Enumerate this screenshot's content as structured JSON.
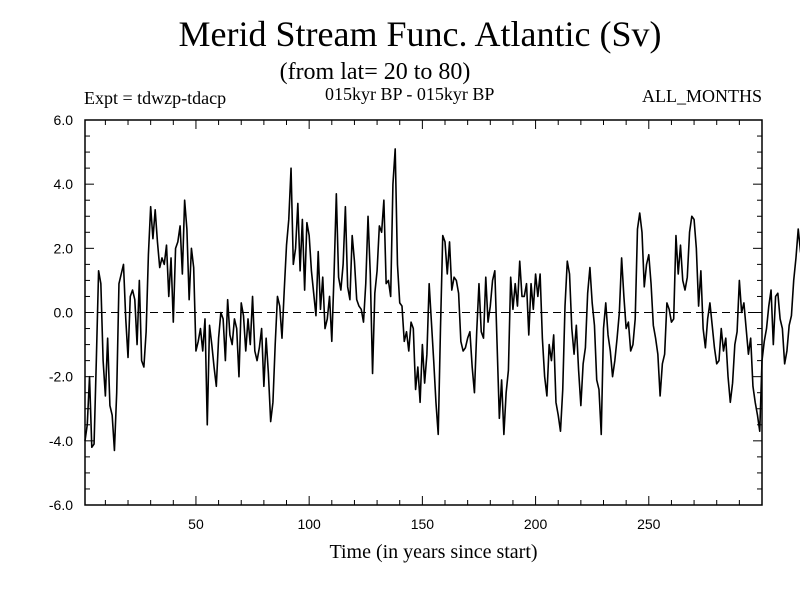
{
  "header": {
    "title": "Merid Stream Func. Atlantic (Sv)",
    "subtitle": "(from lat= 20 to 80)",
    "expt": "Expt = tdwzp-tdacp",
    "period": "015kyr BP - 015kyr BP",
    "months": "ALL_MONTHS"
  },
  "colors": {
    "line": "#000000",
    "axis": "#000000",
    "background": "#ffffff"
  },
  "chart_data": {
    "type": "line",
    "title": "Merid Stream Func. Atlantic (Sv)",
    "subtitle": "(from lat= 20 to 80)",
    "xlabel": "Time (in years since start)",
    "ylabel": "",
    "xlim": [
      1,
      300
    ],
    "ylim": [
      -6,
      6
    ],
    "x_ticks": [
      50,
      100,
      150,
      200,
      250
    ],
    "x_tick_labels": [
      "50",
      "100",
      "150",
      "200",
      "250"
    ],
    "y_ticks": [
      -6,
      -4,
      -2,
      0,
      2,
      4,
      6
    ],
    "y_tick_labels": [
      "-6.0",
      "-4.0",
      "-2.0",
      "0.0",
      "2.0",
      "4.0",
      "6.0"
    ],
    "reference_line": {
      "y": 0,
      "style": "dashed"
    },
    "grid": false,
    "series": [
      {
        "name": "tdwzp-tdacp",
        "x_start": 1,
        "x_step": 1,
        "values": [
          -4.0,
          -3.5,
          -2.0,
          -4.2,
          -4.1,
          -1.5,
          1.3,
          0.9,
          -1.5,
          -2.6,
          -0.8,
          -2.9,
          -3.2,
          -4.3,
          -2.5,
          0.9,
          1.2,
          1.5,
          -0.2,
          -1.4,
          0.5,
          0.7,
          0.4,
          -1.0,
          1.0,
          -1.5,
          -1.7,
          -0.6,
          1.8,
          3.3,
          2.3,
          3.2,
          2.2,
          1.4,
          1.7,
          1.5,
          2.1,
          0.5,
          1.7,
          -0.3,
          2.0,
          2.2,
          2.7,
          1.2,
          3.5,
          2.6,
          0.4,
          2.0,
          1.4,
          -1.2,
          -0.9,
          -0.5,
          -1.2,
          -0.2,
          -3.5,
          -0.4,
          -1.0,
          -1.7,
          -2.3,
          -0.8,
          0.0,
          -0.2,
          -1.5,
          0.4,
          -0.7,
          -1.0,
          -0.2,
          -0.5,
          -2.0,
          0.3,
          -0.1,
          -1.2,
          -0.2,
          -1.0,
          0.5,
          -1.2,
          -1.5,
          -1.1,
          -0.5,
          -2.3,
          -0.8,
          -1.9,
          -3.4,
          -2.8,
          -1.0,
          0.5,
          0.2,
          -0.8,
          0.7,
          2.1,
          2.9,
          4.5,
          1.5,
          2.0,
          3.4,
          1.3,
          2.9,
          0.7,
          2.8,
          2.4,
          1.3,
          0.6,
          -0.1,
          1.9,
          0.1,
          1.1,
          -0.5,
          -0.2,
          0.5,
          -0.9,
          1.2,
          3.7,
          1.1,
          0.7,
          1.5,
          3.3,
          0.8,
          0.4,
          2.4,
          1.6,
          0.4,
          0.2,
          0.1,
          -0.3,
          0.9,
          3.0,
          1.2,
          -1.9,
          0.6,
          1.3,
          2.7,
          2.5,
          3.5,
          0.9,
          1.0,
          0.5,
          4.0,
          5.1,
          1.5,
          0.3,
          0.2,
          -0.9,
          -0.6,
          -1.2,
          -0.3,
          -0.5,
          -2.4,
          -1.7,
          -2.8,
          -1.0,
          -2.2,
          -1.3,
          0.9,
          -0.3,
          -1.5,
          -2.8,
          -3.8,
          -0.5,
          2.4,
          2.2,
          1.2,
          2.2,
          0.7,
          1.1,
          1.0,
          0.6,
          -0.9,
          -1.2,
          -1.1,
          -0.8,
          -0.6,
          -1.7,
          -2.5,
          -0.6,
          0.9,
          -0.6,
          -0.8,
          1.1,
          -0.3,
          0.2,
          1.0,
          1.3,
          -1.0,
          -3.3,
          -2.1,
          -3.8,
          -2.5,
          -1.8,
          1.1,
          0.1,
          0.9,
          0.2,
          1.6,
          0.5,
          0.5,
          0.9,
          -0.7,
          0.9,
          0.1,
          1.2,
          0.5,
          1.2,
          -0.8,
          -2.0,
          -2.6,
          -1.0,
          -1.5,
          -0.7,
          -2.8,
          -3.2,
          -3.7,
          -2.4,
          0.2,
          1.6,
          1.2,
          -0.5,
          -1.3,
          -0.4,
          -1.8,
          -2.9,
          -1.6,
          -1.1,
          0.6,
          1.4,
          0.3,
          -0.4,
          -2.1,
          -2.4,
          -3.8,
          -0.5,
          0.3,
          -0.7,
          -1.2,
          -2.0,
          -1.5,
          -0.8,
          0.0,
          1.7,
          0.5,
          -0.5,
          -0.3,
          -1.2,
          -1.0,
          -0.2,
          2.6,
          3.1,
          2.5,
          0.8,
          1.5,
          1.8,
          0.9,
          -0.4,
          -0.8,
          -1.3,
          -2.6,
          -1.6,
          -1.3,
          0.3,
          0.1,
          -0.3,
          -0.2,
          2.4,
          1.2,
          2.1,
          1.0,
          0.7,
          1.1,
          2.5,
          3.0,
          2.9,
          2.0,
          0.2,
          1.3,
          -0.5,
          -1.1,
          -0.2,
          0.3,
          -0.4,
          -1.1,
          -1.6,
          -1.5,
          -0.5,
          -1.2,
          -0.8,
          -2.0,
          -2.8,
          -2.2,
          -1.0,
          -0.6,
          1.0,
          0.0,
          0.3,
          -0.5,
          -1.3,
          -0.8,
          -2.3,
          -2.8,
          -3.2,
          -3.7,
          -1.5,
          -0.9,
          -0.5,
          0.2,
          0.7,
          -1.0,
          0.5,
          0.6,
          -0.2,
          -0.5,
          -1.6,
          -1.2,
          -0.4,
          -0.1,
          1.0,
          1.7,
          2.6,
          1.9,
          1.5
        ]
      }
    ]
  }
}
